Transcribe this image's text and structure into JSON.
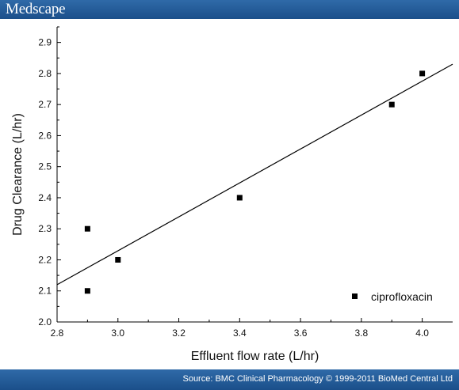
{
  "header": {
    "brand": "Medscape"
  },
  "footer": {
    "source": "Source: BMC Clinical Pharmacology © 1999-2011 BioMed Central Ltd"
  },
  "chart_data": {
    "type": "scatter",
    "xlabel": "Effluent flow rate (L/hr)",
    "ylabel": "Drug Clearance (L/hr)",
    "xlim": [
      2.8,
      4.1
    ],
    "ylim": [
      2.0,
      2.95
    ],
    "x_ticks": [
      "2.8",
      "3.0",
      "3.2",
      "3.4",
      "3.6",
      "3.8",
      "4.0"
    ],
    "y_ticks": [
      "2.0",
      "2.1",
      "2.2",
      "2.3",
      "2.4",
      "2.5",
      "2.6",
      "2.7",
      "2.8",
      "2.9"
    ],
    "grid": false,
    "legend_position": "bottom-right",
    "series": [
      {
        "name": "ciprofloxacin",
        "marker": "square",
        "color": "#000000",
        "points": [
          {
            "x": 2.9,
            "y": 2.3
          },
          {
            "x": 2.9,
            "y": 2.1
          },
          {
            "x": 3.0,
            "y": 2.2
          },
          {
            "x": 3.4,
            "y": 2.4
          },
          {
            "x": 3.9,
            "y": 2.7
          },
          {
            "x": 4.0,
            "y": 2.8
          }
        ]
      }
    ],
    "fit_line": {
      "type": "linear",
      "start": {
        "x": 2.8,
        "y": 2.12
      },
      "end": {
        "x": 4.1,
        "y": 2.83
      }
    }
  }
}
